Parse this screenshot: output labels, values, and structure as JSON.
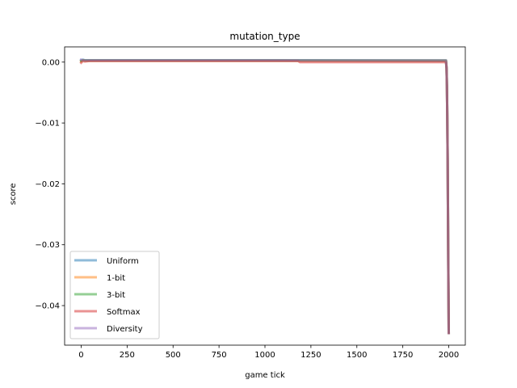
{
  "chart_data": {
    "type": "line",
    "title": "mutation_type",
    "xlabel": "game tick",
    "ylabel": "score",
    "xlim": [
      -90,
      2090
    ],
    "ylim": [
      -0.0465,
      0.0025
    ],
    "xticks": [
      0,
      250,
      500,
      750,
      1000,
      1250,
      1500,
      1750,
      2000
    ],
    "yticks": [
      0.0,
      -0.01,
      -0.02,
      -0.03,
      -0.04
    ],
    "ytick_labels": [
      "0.00",
      "−0.01",
      "−0.02",
      "−0.03",
      "−0.04"
    ],
    "grid": false,
    "legend_position": "lower-left",
    "series": [
      {
        "name": "Uniform",
        "color": "#1f77b4",
        "x": [
          0,
          10,
          20,
          50,
          1000,
          1950,
          1985,
          1988,
          1990,
          1992,
          1994,
          1996,
          1998,
          2000
        ],
        "y": [
          0.0003,
          0.0004,
          0.0003,
          0.0003,
          0.0003,
          0.0002,
          0.0002,
          -0.001,
          -0.004,
          -0.009,
          -0.016,
          -0.026,
          -0.036,
          -0.0445
        ]
      },
      {
        "name": "1-bit",
        "color": "#ff7f0e",
        "x": [
          0,
          10,
          20,
          50,
          1000,
          1950,
          1985,
          1988,
          1990,
          1992,
          1994,
          1996,
          1998,
          2000
        ],
        "y": [
          0.0001,
          0.0003,
          0.0002,
          0.0002,
          0.0002,
          0.0002,
          0.0002,
          -0.001,
          -0.004,
          -0.009,
          -0.016,
          -0.026,
          -0.036,
          -0.0445
        ]
      },
      {
        "name": "3-bit",
        "color": "#2ca02c",
        "x": [
          0,
          10,
          20,
          50,
          1000,
          1950,
          1985,
          1988,
          1990,
          1992,
          1994,
          1996,
          1998,
          2000
        ],
        "y": [
          0.0002,
          0.0003,
          0.0003,
          0.0003,
          0.0003,
          0.0003,
          0.0003,
          -0.001,
          -0.004,
          -0.009,
          -0.016,
          -0.026,
          -0.036,
          -0.0445
        ]
      },
      {
        "name": "Softmax",
        "color": "#d62728",
        "x": [
          0,
          10,
          20,
          50,
          1180,
          1190,
          1950,
          1985,
          1988,
          1990,
          1992,
          1994,
          1996,
          1998,
          2000
        ],
        "y": [
          -0.0001,
          0.0002,
          0.0001,
          0.0002,
          0.0002,
          0.0,
          0.0,
          0.0,
          -0.001,
          -0.004,
          -0.009,
          -0.016,
          -0.026,
          -0.036,
          -0.0445
        ]
      },
      {
        "name": "Diversity",
        "color": "#9467bd",
        "x": [
          0,
          10,
          20,
          50,
          1000,
          1950,
          1985,
          1988,
          1990,
          1992,
          1994,
          1996,
          1998,
          2000
        ],
        "y": [
          0.0004,
          0.0003,
          0.0003,
          0.0003,
          0.0003,
          0.0003,
          0.0003,
          -0.001,
          -0.004,
          -0.009,
          -0.016,
          -0.026,
          -0.036,
          -0.0445
        ]
      }
    ]
  }
}
